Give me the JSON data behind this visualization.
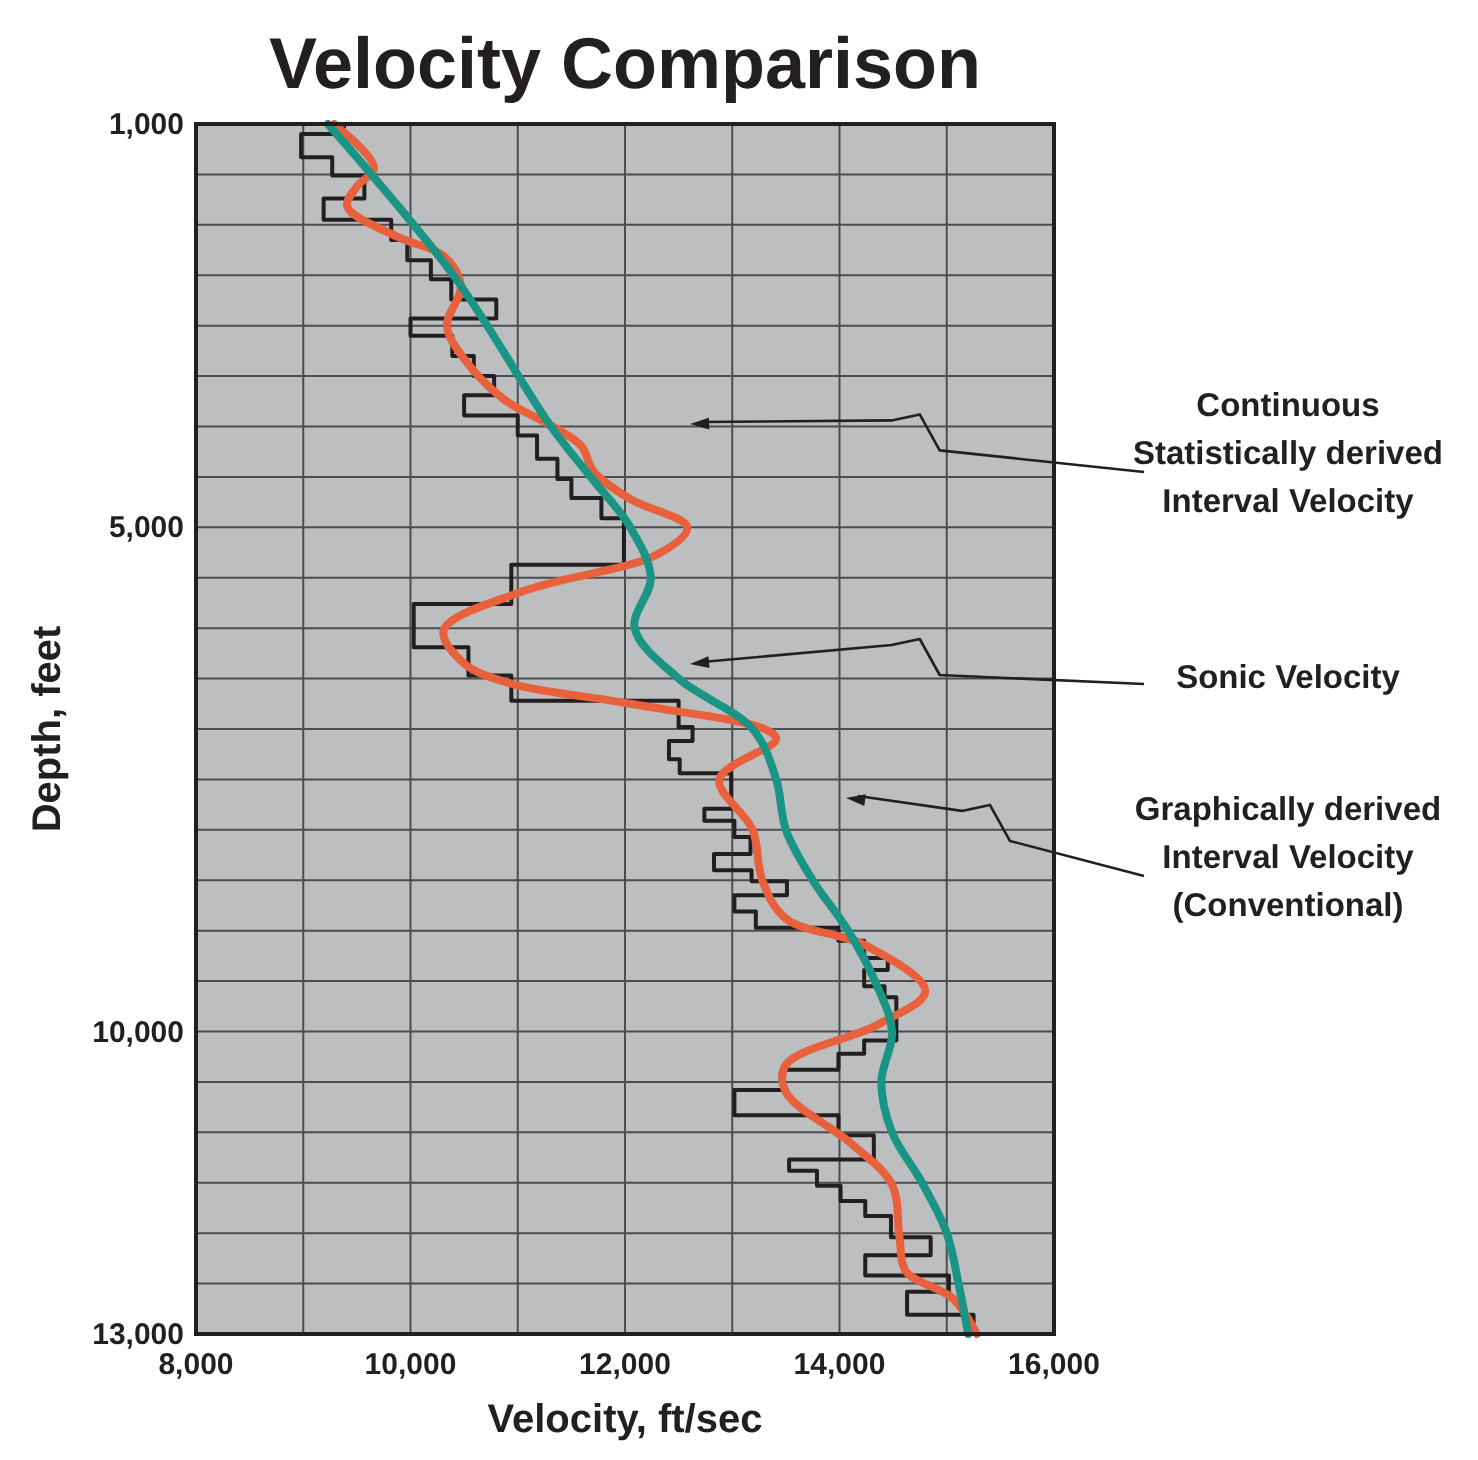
{
  "chart_data": {
    "type": "line",
    "title": "Velocity Comparison",
    "xlabel": "Velocity, ft/sec",
    "ylabel": "Depth, feet",
    "xlim": [
      8000,
      16000
    ],
    "ylim": [
      13000,
      1000
    ],
    "xticks": [
      {
        "value": 8000,
        "label": "8,000"
      },
      {
        "value": 9000,
        "label": null
      },
      {
        "value": 10000,
        "label": "10,000"
      },
      {
        "value": 11000,
        "label": null
      },
      {
        "value": 12000,
        "label": "12,000"
      },
      {
        "value": 13000,
        "label": null
      },
      {
        "value": 14000,
        "label": "14,000"
      },
      {
        "value": 15000,
        "label": null
      },
      {
        "value": 16000,
        "label": "16,000"
      }
    ],
    "yticks": [
      {
        "value": 1000,
        "label": "1,000"
      },
      {
        "value": 1500,
        "label": null
      },
      {
        "value": 2000,
        "label": null
      },
      {
        "value": 2500,
        "label": null
      },
      {
        "value": 3000,
        "label": null
      },
      {
        "value": 3500,
        "label": null
      },
      {
        "value": 4000,
        "label": null
      },
      {
        "value": 4500,
        "label": null
      },
      {
        "value": 5000,
        "label": "5,000"
      },
      {
        "value": 5500,
        "label": null
      },
      {
        "value": 6000,
        "label": null
      },
      {
        "value": 6500,
        "label": null
      },
      {
        "value": 7000,
        "label": null
      },
      {
        "value": 7500,
        "label": null
      },
      {
        "value": 8000,
        "label": null
      },
      {
        "value": 8500,
        "label": null
      },
      {
        "value": 9000,
        "label": null
      },
      {
        "value": 9500,
        "label": null
      },
      {
        "value": 10000,
        "label": "10,000"
      },
      {
        "value": 10500,
        "label": null
      },
      {
        "value": 11000,
        "label": null
      },
      {
        "value": 11500,
        "label": null
      },
      {
        "value": 12000,
        "label": null
      },
      {
        "value": 12500,
        "label": null
      },
      {
        "value": 13000,
        "label": "13,000"
      }
    ],
    "grid": true,
    "series": [
      {
        "type": "step",
        "color": "#231f20",
        "x": [
          9380,
          9380,
          8980,
          8980,
          9270,
          9270,
          9570,
          9570,
          9190,
          9190,
          9820,
          9820,
          9970,
          9970,
          10190,
          10190,
          10380,
          10380,
          10800,
          10800,
          10000,
          10000,
          10390,
          10390,
          10590,
          10590,
          10780,
          10780,
          10500,
          10500,
          11000,
          11000,
          11180,
          11180,
          11370,
          11370,
          11500,
          11500,
          11780,
          11780,
          11990,
          11990,
          10940,
          10940,
          10030,
          10030,
          10540,
          10540,
          10940,
          10940,
          12500,
          12500,
          12630,
          12630,
          12410,
          12410,
          12510,
          12510,
          12990,
          12990,
          12740,
          12740,
          13020,
          13020,
          13170,
          13170,
          12830,
          12830,
          13180,
          13180,
          13510,
          13510,
          13020,
          13020,
          13220,
          13220,
          13990,
          13990,
          14230,
          14230,
          14450,
          14450,
          14230,
          14230,
          14420,
          14420,
          14530,
          14530,
          14230,
          14230,
          13990,
          13990,
          13480,
          13480,
          13020,
          13020,
          13990,
          13990,
          14320,
          14320,
          13530,
          13530,
          13790,
          13790,
          14010,
          14010,
          14240,
          14240,
          14480,
          14480,
          14850,
          14850,
          14240,
          14240,
          15020,
          15020,
          14630,
          14630,
          15250,
          15250
        ],
        "values": [
          1000,
          1100,
          1100,
          1330,
          1330,
          1510,
          1510,
          1740,
          1740,
          1950,
          1950,
          2150,
          2150,
          2350,
          2350,
          2540,
          2540,
          2740,
          2740,
          2930,
          2930,
          3100,
          3100,
          3300,
          3300,
          3500,
          3500,
          3690,
          3690,
          3890,
          3890,
          4090,
          4090,
          4320,
          4320,
          4520,
          4520,
          4710,
          4710,
          4910,
          4910,
          5370,
          5370,
          5760,
          5760,
          6190,
          6190,
          6470,
          6470,
          6720,
          6720,
          6980,
          6980,
          7120,
          7120,
          7300,
          7300,
          7440,
          7440,
          7790,
          7790,
          7910,
          7910,
          8070,
          8070,
          8240,
          8240,
          8400,
          8400,
          8510,
          8510,
          8650,
          8650,
          8810,
          8810,
          8970,
          8970,
          9100,
          9100,
          9270,
          9270,
          9390,
          9390,
          9550,
          9550,
          9660,
          9660,
          10090,
          10090,
          10220,
          10220,
          10380,
          10380,
          10580,
          10580,
          10830,
          10830,
          11030,
          11030,
          11270,
          11270,
          11380,
          11380,
          11530,
          11530,
          11680,
          11680,
          11830,
          11830,
          12040,
          12040,
          12220,
          12220,
          12420,
          12420,
          12580,
          12580,
          12810,
          12810,
          13000
        ]
      },
      {
        "color": "#e8603c",
        "x": [
          9290,
          9660,
          9500,
          9410,
          9880,
          10310,
          10470,
          10340,
          10500,
          10870,
          11310,
          11590,
          11710,
          12050,
          12580,
          12300,
          11060,
          10310,
          10500,
          10940,
          12050,
          13300,
          13410,
          12880,
          13190,
          13280,
          13500,
          14250,
          14800,
          14360,
          13500,
          13500,
          14120,
          14490,
          14560,
          14620,
          15060,
          15280
        ],
        "values": [
          1000,
          1430,
          1620,
          1820,
          2120,
          2310,
          2610,
          3000,
          3330,
          3730,
          3990,
          4190,
          4450,
          4720,
          5000,
          5270,
          5630,
          6020,
          6350,
          6550,
          6750,
          7000,
          7100,
          7500,
          8000,
          8500,
          8880,
          9150,
          9600,
          9930,
          10330,
          10600,
          11120,
          11520,
          12050,
          12380,
          12650,
          13000
        ]
      },
      {
        "color": "#1a9484",
        "x": [
          9230,
          10400,
          11310,
          11680,
          12050,
          12240,
          12090,
          12500,
          13190,
          13410,
          13500,
          13750,
          14080,
          14330,
          14490,
          14390,
          14490,
          14770,
          15000,
          15110,
          15200
        ],
        "values": [
          1000,
          2500,
          4000,
          4500,
          5000,
          5500,
          6000,
          6500,
          7000,
          7500,
          8000,
          8500,
          9000,
          9500,
          10000,
          10500,
          11000,
          11500,
          12000,
          12500,
          13000
        ]
      }
    ],
    "annotations": [
      "Continuous\nStatistically derived\nInterval Velocity",
      "Sonic Velocity",
      "Graphically derived\nInterval Velocity\n(Conventional)"
    ]
  }
}
